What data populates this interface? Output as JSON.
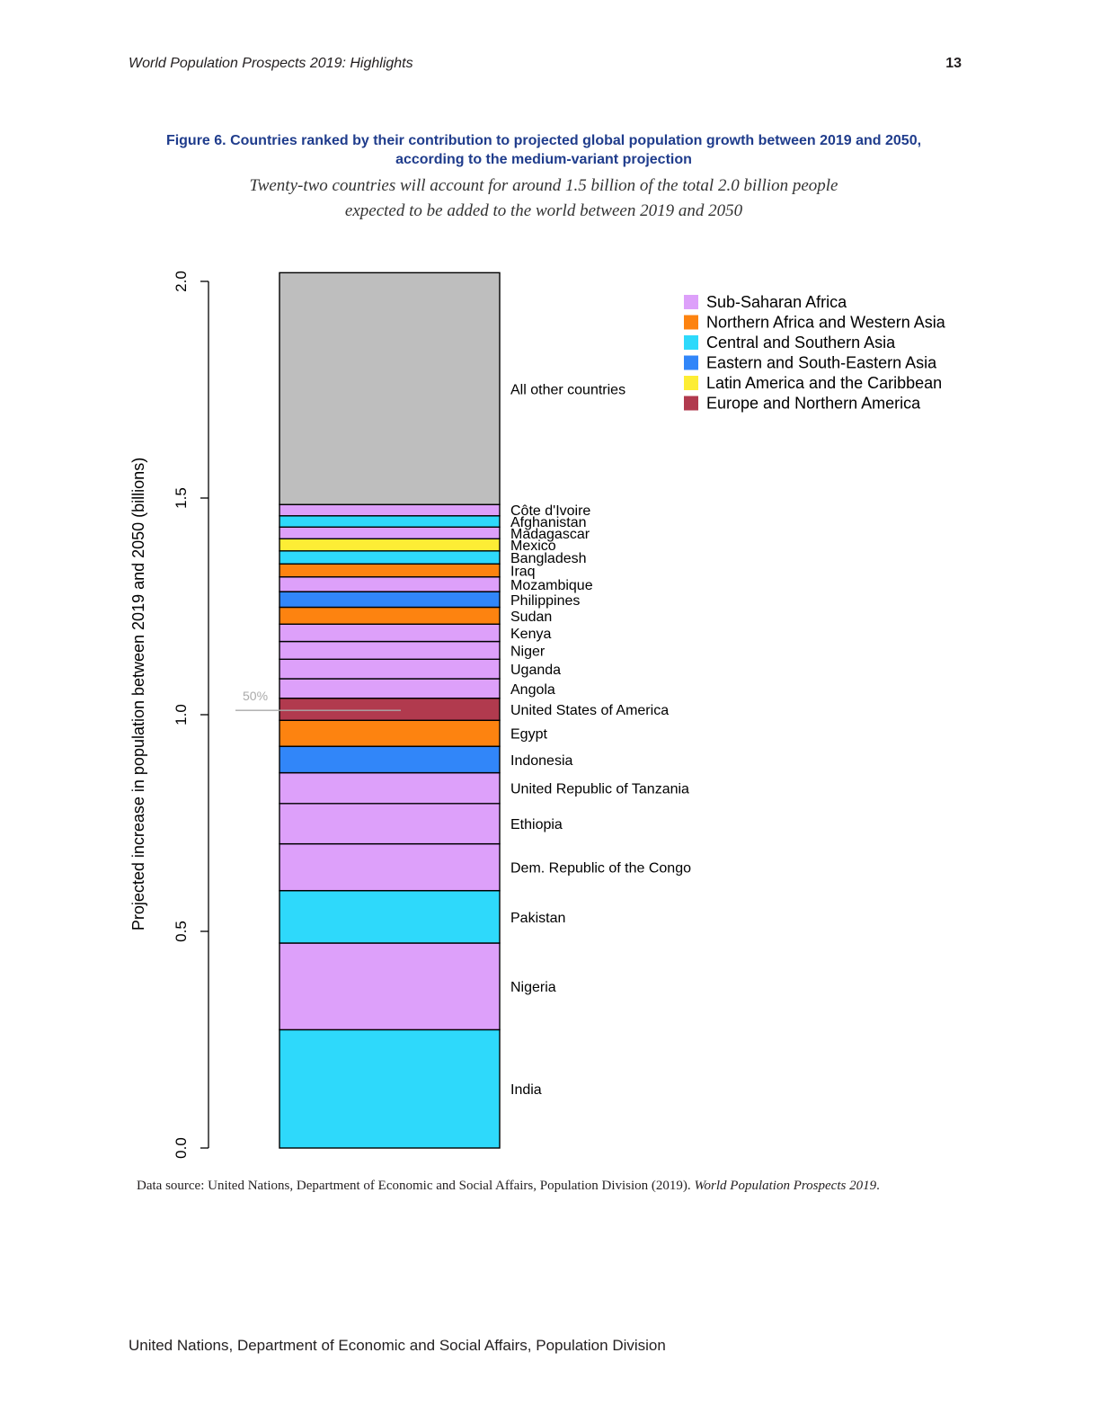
{
  "header": {
    "title": "World Population Prospects 2019: Highlights",
    "page_number": "13"
  },
  "figure": {
    "title_line1": "Figure 6. Countries ranked by their contribution to projected global population growth between 2019 and 2050,",
    "title_line2": "according to the medium-variant projection",
    "subtitle_line1": "Twenty-two countries will account for around 1.5 billion of the total 2.0 billion people",
    "subtitle_line2": "expected to be added to the world between 2019 and 2050"
  },
  "source": {
    "prefix": "Data source: United Nations, Department of Economic and Social Affairs, Population Division (2019). ",
    "publication": "World Population Prospects 2019",
    "suffix": "."
  },
  "footer": {
    "text": "United Nations, Department of Economic and Social Affairs, Population Division"
  },
  "chart_data": {
    "type": "bar",
    "stacked": true,
    "ylabel": "Projected increase in population between 2019 and 2050 (billions)",
    "ylim": [
      0,
      2.0
    ],
    "yticks": [
      "0.0",
      "0.5",
      "1.0",
      "1.5",
      "2.0"
    ],
    "grid": false,
    "legend_position": "top-right",
    "reference_line": {
      "label": "50%",
      "value": 1.01,
      "color": "#aaaaaa"
    },
    "regions": [
      {
        "name": "Sub-Saharan Africa",
        "color": "#dda0fa"
      },
      {
        "name": "Northern Africa and Western Asia",
        "color": "#fd8310"
      },
      {
        "name": "Central and Southern Asia",
        "color": "#2ed9fb"
      },
      {
        "name": "Eastern and South-Eastern Asia",
        "color": "#3186f9"
      },
      {
        "name": "Latin America and the Caribbean",
        "color": "#fded35"
      },
      {
        "name": "Europe and Northern America",
        "color": "#b13a4e"
      }
    ],
    "segments": [
      {
        "label": "India",
        "value": 0.273,
        "region": 2
      },
      {
        "label": "Nigeria",
        "value": 0.2,
        "region": 0
      },
      {
        "label": "Pakistan",
        "value": 0.121,
        "region": 2
      },
      {
        "label": "Dem. Republic of the Congo",
        "value": 0.108,
        "region": 0
      },
      {
        "label": "Ethiopia",
        "value": 0.093,
        "region": 0
      },
      {
        "label": "United Republic of Tanzania",
        "value": 0.071,
        "region": 0
      },
      {
        "label": "Indonesia",
        "value": 0.061,
        "region": 3
      },
      {
        "label": "Egypt",
        "value": 0.06,
        "region": 1
      },
      {
        "label": "United States of America",
        "value": 0.051,
        "region": 5
      },
      {
        "label": "Angola",
        "value": 0.045,
        "region": 0
      },
      {
        "label": "Uganda",
        "value": 0.045,
        "region": 0
      },
      {
        "label": "Niger",
        "value": 0.041,
        "region": 0
      },
      {
        "label": "Kenya",
        "value": 0.04,
        "region": 0
      },
      {
        "label": "Sudan",
        "value": 0.039,
        "region": 1
      },
      {
        "label": "Philippines",
        "value": 0.036,
        "region": 3
      },
      {
        "label": "Mozambique",
        "value": 0.034,
        "region": 0
      },
      {
        "label": "Iraq",
        "value": 0.03,
        "region": 1
      },
      {
        "label": "Bangladesh",
        "value": 0.03,
        "region": 2
      },
      {
        "label": "Mexico",
        "value": 0.028,
        "region": 4
      },
      {
        "label": "Madagascar",
        "value": 0.027,
        "region": 0
      },
      {
        "label": "Afghanistan",
        "value": 0.026,
        "region": 2
      },
      {
        "label": "Côte d'Ivoire",
        "value": 0.026,
        "region": 0
      },
      {
        "label": "All other countries",
        "value": 0.535,
        "region": -1,
        "color": "#bebebe"
      }
    ]
  }
}
